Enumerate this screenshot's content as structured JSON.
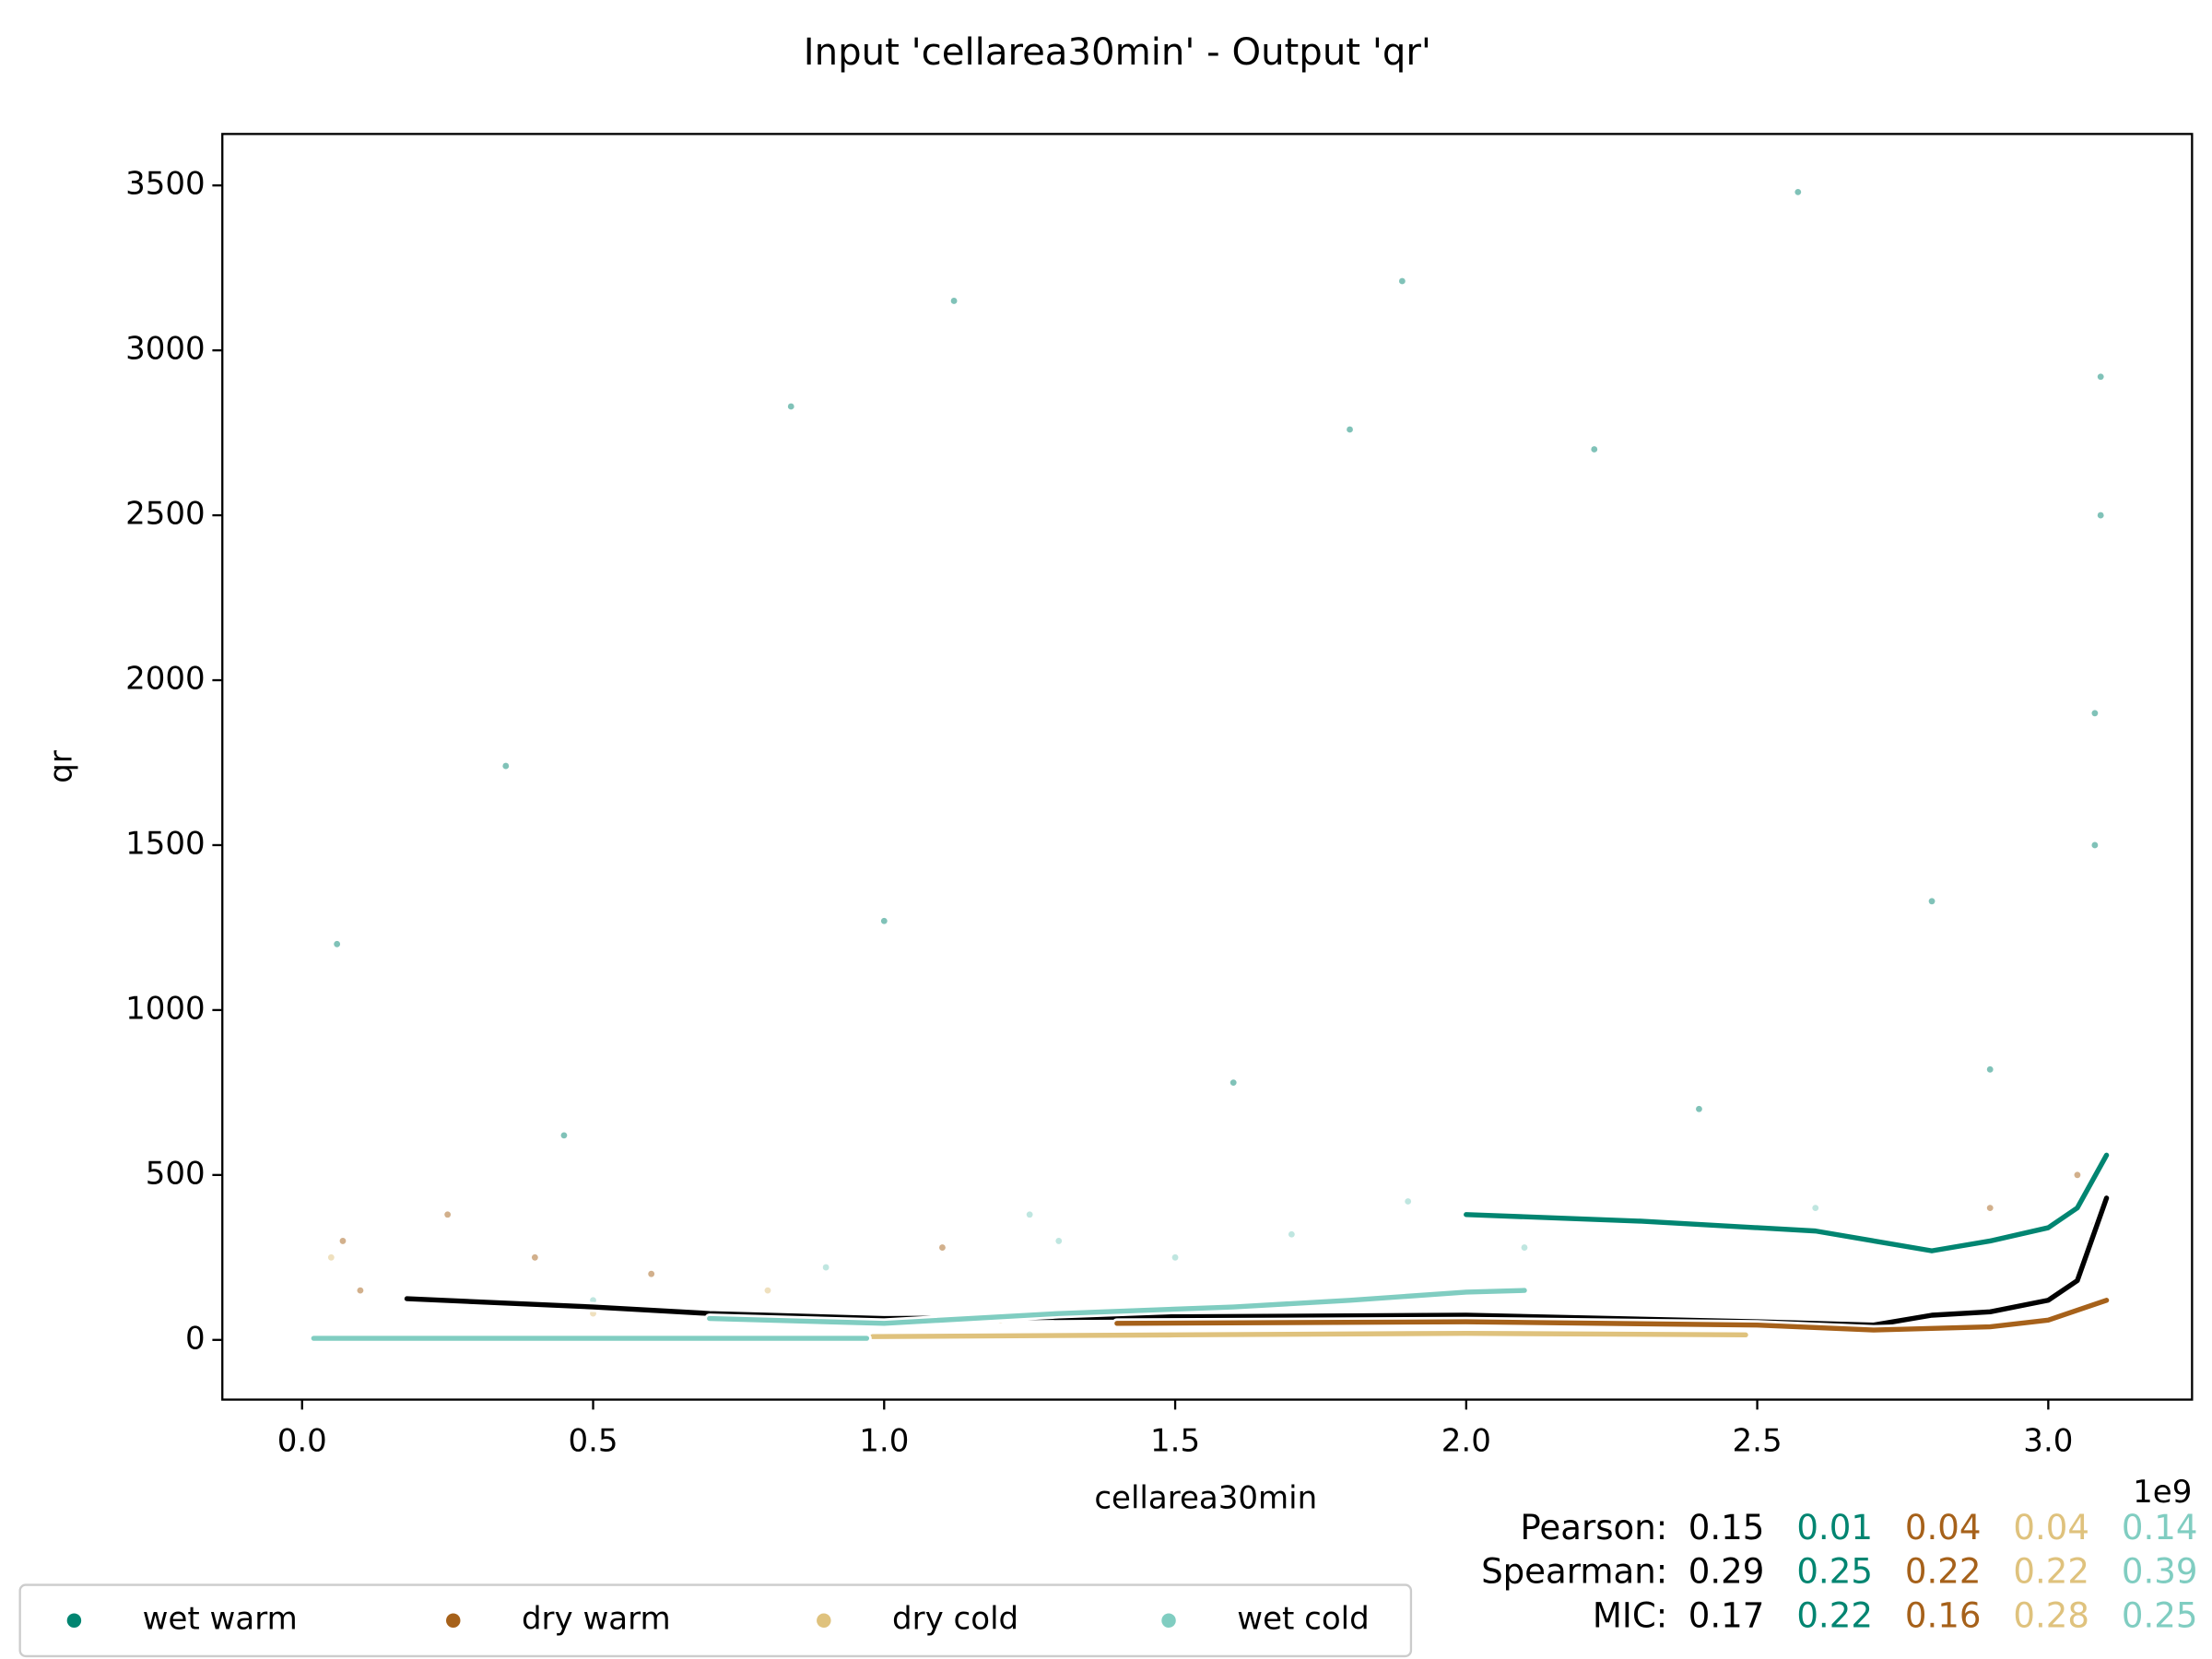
{
  "chart_data": {
    "type": "scatter",
    "title": "Input 'cellarea30min' - Output 'qr'",
    "x_label": "cellarea30min",
    "y_label": "qr",
    "x_offset_label": "1e9",
    "xlim": [
      -0.137,
      3.247
    ],
    "ylim": [
      -181,
      3656
    ],
    "xticks": [
      {
        "value": 0,
        "label": "0.0"
      },
      0.5,
      {
        "value": 1,
        "label": "1.0"
      },
      1.5,
      {
        "value": 2,
        "label": "2.0"
      },
      2.5,
      {
        "value": 3,
        "label": "3.0"
      }
    ],
    "yticks": [
      0,
      500,
      1000,
      1500,
      2000,
      2500,
      3000,
      3500
    ],
    "legend": "lower left",
    "overall": {
      "color": "#000000",
      "x": [
        0.18,
        0.5,
        0.7,
        1.0,
        1.5,
        2.0,
        2.5,
        2.7,
        2.8,
        2.9,
        3.0,
        3.05,
        3.1
      ],
      "values": [
        125,
        100,
        80,
        65,
        70,
        75,
        55,
        45,
        75,
        85,
        120,
        180,
        430
      ]
    },
    "series": [
      {
        "name": "wet warm",
        "color": "#018571",
        "x": [
          2.0,
          2.3,
          2.6,
          2.8,
          2.9,
          3.0,
          3.05,
          3.1
        ],
        "values": [
          380,
          360,
          330,
          270,
          300,
          340,
          400,
          560
        ],
        "points_x": [
          1.12,
          1.89,
          2.57,
          0.84,
          1.8,
          2.22,
          3.09,
          3.09,
          0.06,
          0.35,
          1.0,
          2.8,
          3.08,
          3.08,
          0.45,
          1.6,
          2.4,
          2.9
        ],
        "points_y": [
          3150,
          3210,
          3480,
          2830,
          2760,
          2700,
          2920,
          2500,
          1200,
          1740,
          1270,
          1330,
          1900,
          1500,
          620,
          780,
          700,
          820
        ]
      },
      {
        "name": "dry warm",
        "color": "#a6611a",
        "x": [
          1.4,
          2.0,
          2.5,
          2.7,
          2.9,
          3.0,
          3.05,
          3.1
        ],
        "values": [
          50,
          55,
          45,
          30,
          40,
          60,
          90,
          120
        ],
        "points_x": [
          0.07,
          0.1,
          0.25,
          0.4,
          0.6,
          1.1,
          2.9,
          3.05,
          3.08
        ],
        "points_y": [
          300,
          150,
          380,
          250,
          200,
          280,
          400,
          500,
          350
        ]
      },
      {
        "name": "dry cold",
        "color": "#dfc27d",
        "x": [
          0.98,
          1.5,
          2.0,
          2.48
        ],
        "values": [
          10,
          15,
          20,
          15
        ],
        "points_x": [
          0.05,
          0.2,
          0.5,
          0.8,
          1.2
        ],
        "points_y": [
          250,
          120,
          80,
          150,
          60
        ]
      },
      {
        "name": "wet cold",
        "color": "#80cdc1",
        "x": [
          0.02,
          0.97,
          0.8,
          0.7,
          1.0,
          1.3,
          1.6,
          1.8,
          2.0,
          2.1
        ],
        "values": [
          5,
          5,
          null,
          65,
          50,
          80,
          100,
          120,
          145,
          150
        ],
        "points_x": [
          1.25,
          1.3,
          1.5,
          1.7,
          1.9,
          2.1,
          0.5,
          0.9,
          2.6
        ],
        "points_y": [
          380,
          300,
          250,
          320,
          420,
          280,
          120,
          220,
          400
        ]
      }
    ],
    "statistics": [
      {
        "label": "Pearson:",
        "values": [
          0.15,
          0.01,
          0.04,
          0.04,
          0.14
        ]
      },
      {
        "label": "Spearman:",
        "values": [
          0.29,
          0.25,
          0.22,
          0.22,
          0.39
        ]
      },
      {
        "label": "MIC:",
        "values": [
          0.17,
          0.22,
          0.16,
          0.28,
          0.25
        ]
      }
    ]
  }
}
